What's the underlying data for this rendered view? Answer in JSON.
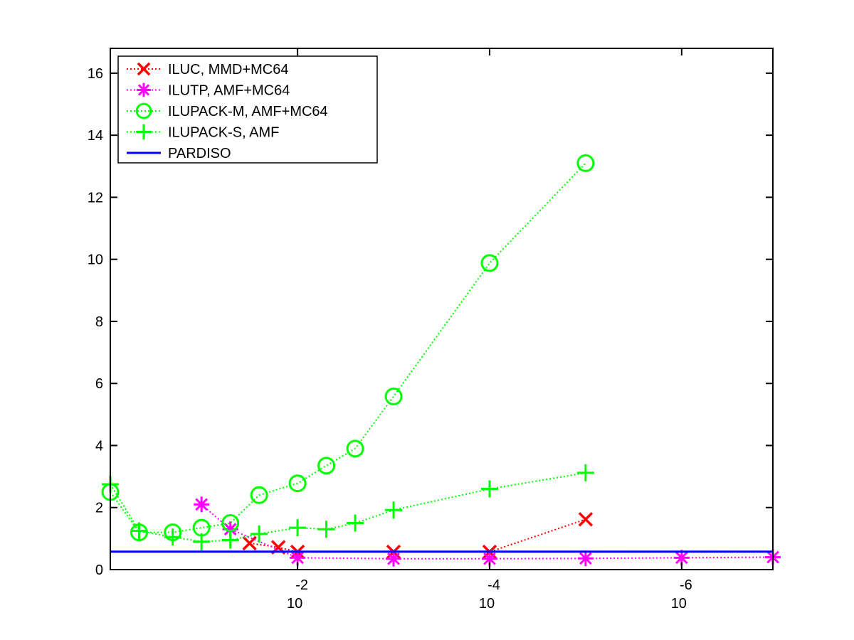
{
  "chart_data": {
    "type": "line",
    "title": "",
    "xlabel": "",
    "ylabel": "",
    "x_scale": "log-reversed",
    "xlim_log10": [
      -0.05,
      -6.95
    ],
    "ylim": [
      0,
      16.8
    ],
    "grid": false,
    "legend_position": "top-left",
    "yticks": [
      0,
      2,
      4,
      6,
      8,
      10,
      12,
      14,
      16
    ],
    "xticks": [
      {
        "base": "10",
        "exp": "-2",
        "log10": -2
      },
      {
        "base": "10",
        "exp": "-4",
        "log10": -4
      },
      {
        "base": "10",
        "exp": "-6",
        "log10": -6
      }
    ],
    "series": [
      {
        "name": "ILUC, MMD+MC64",
        "color": "#ff0000",
        "marker": "x",
        "line": "dotted",
        "x_log10": [
          -1.5,
          -1.8,
          -2.0,
          -3.0,
          -4.0,
          -5.0
        ],
        "y": [
          0.85,
          0.72,
          0.57,
          0.57,
          0.57,
          1.62
        ]
      },
      {
        "name": "ILUTP, AMF+MC64",
        "color": "#ff00ff",
        "marker": "asterisk",
        "line": "dotted",
        "x_log10": [
          -1.0,
          -1.3,
          -2.0,
          -3.0,
          -4.0,
          -5.0,
          -6.0,
          -6.95
        ],
        "y": [
          2.1,
          1.3,
          0.38,
          0.35,
          0.35,
          0.36,
          0.38,
          0.4
        ]
      },
      {
        "name": "ILUPACK-M, AMF+MC64",
        "color": "#00ff00",
        "marker": "circle",
        "line": "dotted",
        "x_log10": [
          -0.05,
          -0.35,
          -0.7,
          -1.0,
          -1.3,
          -1.6,
          -2.0,
          -2.3,
          -2.6,
          -3.0,
          -4.0,
          -5.0
        ],
        "y": [
          2.5,
          1.2,
          1.2,
          1.35,
          1.5,
          2.4,
          2.78,
          3.35,
          3.9,
          5.58,
          9.88,
          13.1
        ]
      },
      {
        "name": "ILUPACK-S, AMF",
        "color": "#00ff00",
        "marker": "plus",
        "line": "dotted",
        "x_log10": [
          -0.05,
          -0.35,
          -0.7,
          -1.0,
          -1.3,
          -1.6,
          -2.0,
          -2.3,
          -2.6,
          -3.0,
          -4.0,
          -5.0
        ],
        "y": [
          2.75,
          1.25,
          1.05,
          0.9,
          0.95,
          1.15,
          1.35,
          1.3,
          1.5,
          1.92,
          2.6,
          3.12
        ]
      },
      {
        "name": "PARDISO",
        "color": "#0000ff",
        "marker": "none",
        "line": "solid",
        "x_log10": [
          -0.05,
          -6.95
        ],
        "y": [
          0.58,
          0.58
        ]
      }
    ]
  }
}
